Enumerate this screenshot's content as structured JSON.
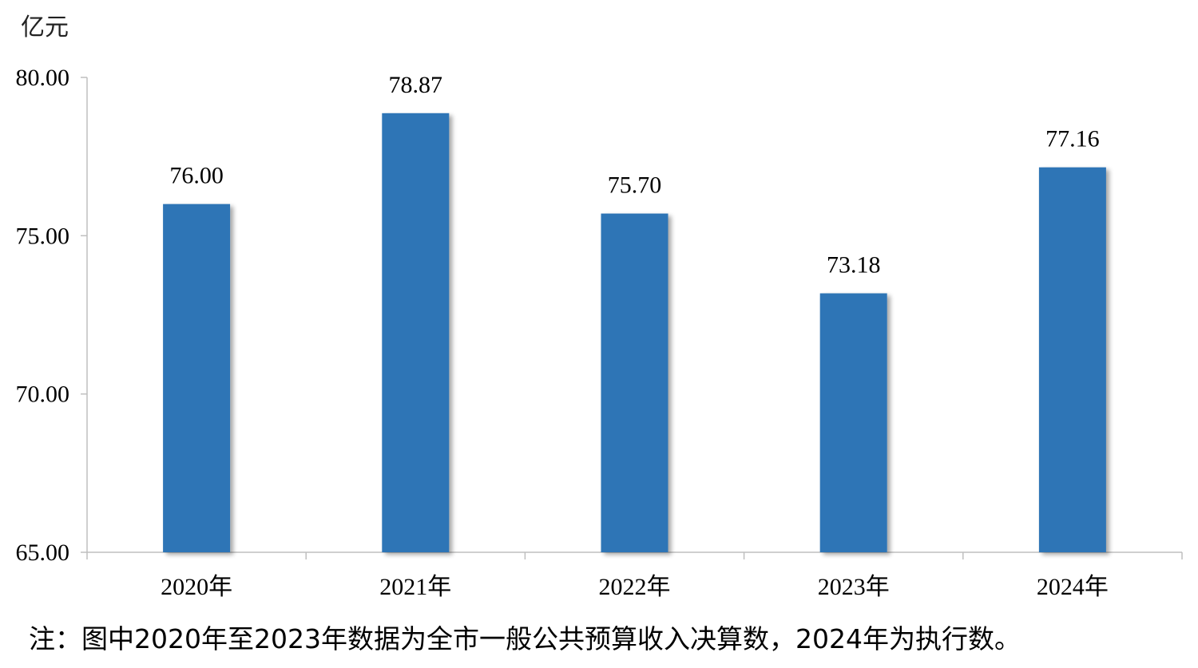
{
  "chart_data": {
    "type": "bar",
    "unit_label": "亿元",
    "categories": [
      "2020年",
      "2021年",
      "2022年",
      "2023年",
      "2024年"
    ],
    "values": [
      76.0,
      78.87,
      75.7,
      73.18,
      77.16
    ],
    "value_labels": [
      "76.00",
      "78.87",
      "75.70",
      "73.18",
      "77.16"
    ],
    "ylim": [
      65,
      80
    ],
    "y_ticks": [
      65,
      70,
      75,
      80
    ],
    "y_tick_labels": [
      "65.00",
      "70.00",
      "75.00",
      "80.00"
    ],
    "bar_color": "#2E75B6",
    "grid": false,
    "legend": "none"
  },
  "footnote": "注：图中2020年至2023年数据为全市一般公共预算收入决算数，2024年为执行数。"
}
